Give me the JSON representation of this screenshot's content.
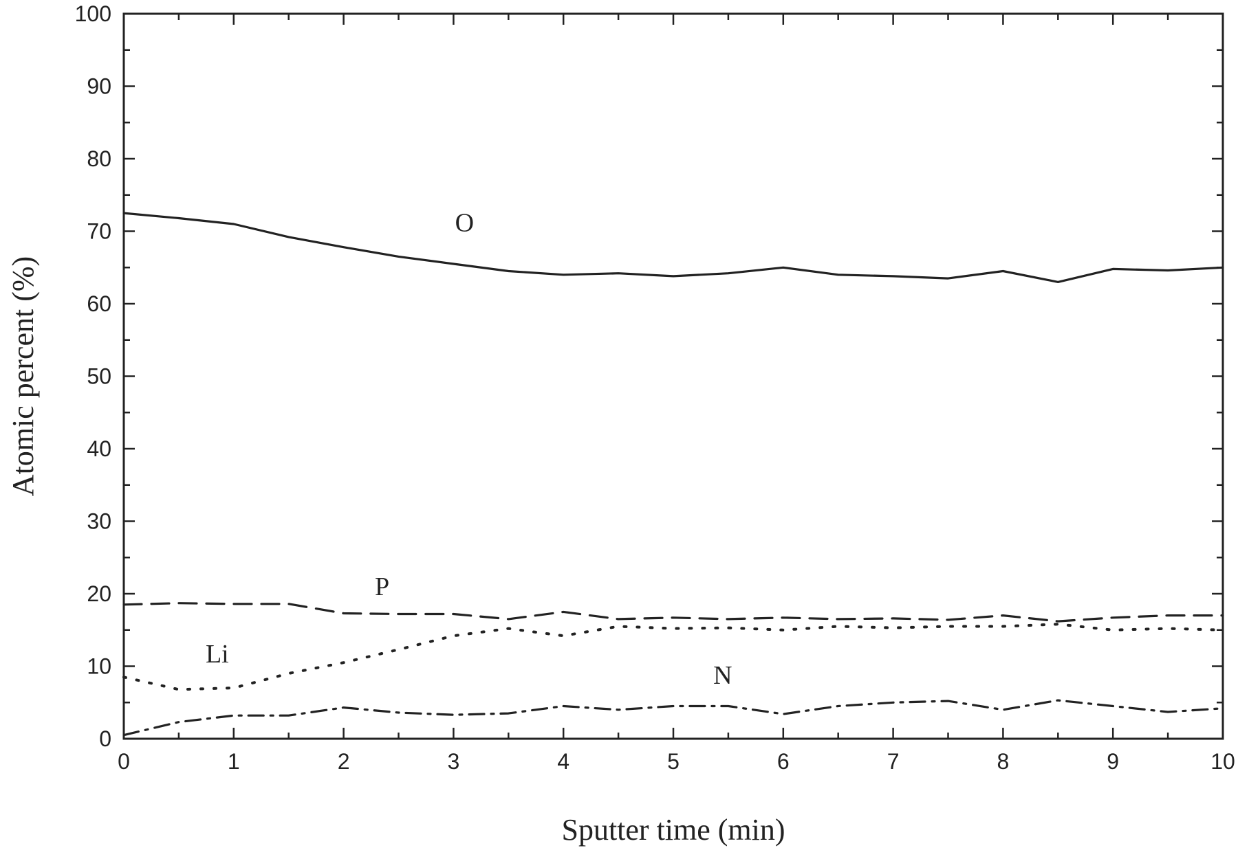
{
  "chart_data": {
    "type": "line",
    "title": "",
    "xlabel": "Sputter time (min)",
    "ylabel": "Atomic percent (%)",
    "xlim": [
      0,
      10
    ],
    "ylim": [
      0,
      100
    ],
    "x_ticks": [
      "0",
      "1",
      "2",
      "3",
      "4",
      "5",
      "6",
      "7",
      "8",
      "9",
      "10"
    ],
    "y_ticks": [
      "0",
      "10",
      "20",
      "30",
      "40",
      "50",
      "60",
      "70",
      "80",
      "90",
      "100"
    ],
    "grid": false,
    "legend": "none",
    "series": [
      {
        "name": "O",
        "line_style": "solid",
        "x": [
          0,
          0.5,
          1,
          1.5,
          2,
          2.5,
          3,
          3.5,
          4,
          4.5,
          5,
          5.5,
          6,
          6.5,
          7,
          7.5,
          8,
          8.5,
          9,
          9.5,
          10
        ],
        "y": [
          72.5,
          71.8,
          71,
          69.2,
          67.8,
          66.5,
          65.5,
          64.5,
          64,
          64.2,
          63.8,
          64.2,
          65,
          64,
          63.8,
          63.5,
          64.5,
          63,
          64.8,
          64.6,
          65
        ]
      },
      {
        "name": "P",
        "line_style": "dashed",
        "x": [
          0,
          0.5,
          1,
          1.5,
          2,
          2.5,
          3,
          3.5,
          4,
          4.5,
          5,
          5.5,
          6,
          6.5,
          7,
          7.5,
          8,
          8.5,
          9,
          9.5,
          10
        ],
        "y": [
          18.5,
          18.7,
          18.6,
          18.6,
          17.3,
          17.2,
          17.2,
          16.5,
          17.5,
          16.5,
          16.7,
          16.5,
          16.7,
          16.5,
          16.6,
          16.4,
          17,
          16.2,
          16.7,
          17,
          17
        ]
      },
      {
        "name": "Li",
        "line_style": "dotted",
        "x": [
          0,
          0.5,
          1,
          1.5,
          2,
          2.5,
          3,
          3.5,
          4,
          4.5,
          5,
          5.5,
          6,
          6.5,
          7,
          7.5,
          8,
          8.5,
          9,
          9.5,
          10
        ],
        "y": [
          8.5,
          6.8,
          7,
          9,
          10.5,
          12.3,
          14.2,
          15.2,
          14.2,
          15.5,
          15.2,
          15.3,
          15,
          15.5,
          15.3,
          15.5,
          15.5,
          15.8,
          15,
          15.2,
          15
        ]
      },
      {
        "name": "N",
        "line_style": "dash-dot",
        "x": [
          0,
          0.5,
          1,
          1.5,
          2,
          2.5,
          3,
          3.5,
          4,
          4.5,
          5,
          5.5,
          6,
          6.5,
          7,
          7.5,
          8,
          8.5,
          9,
          9.5,
          10
        ],
        "y": [
          0.5,
          2.3,
          3.2,
          3.2,
          4.3,
          3.6,
          3.3,
          3.5,
          4.5,
          4,
          4.5,
          4.5,
          3.4,
          4.5,
          5,
          5.2,
          4,
          5.3,
          4.5,
          3.7,
          4.2
        ]
      }
    ],
    "annotations": [
      {
        "text": "O",
        "x": 3.1,
        "y": 70
      },
      {
        "text": "P",
        "x": 2.35,
        "y": 19.8
      },
      {
        "text": "Li",
        "x": 0.85,
        "y": 10.5
      },
      {
        "text": "N",
        "x": 5.45,
        "y": 7.6
      }
    ]
  }
}
